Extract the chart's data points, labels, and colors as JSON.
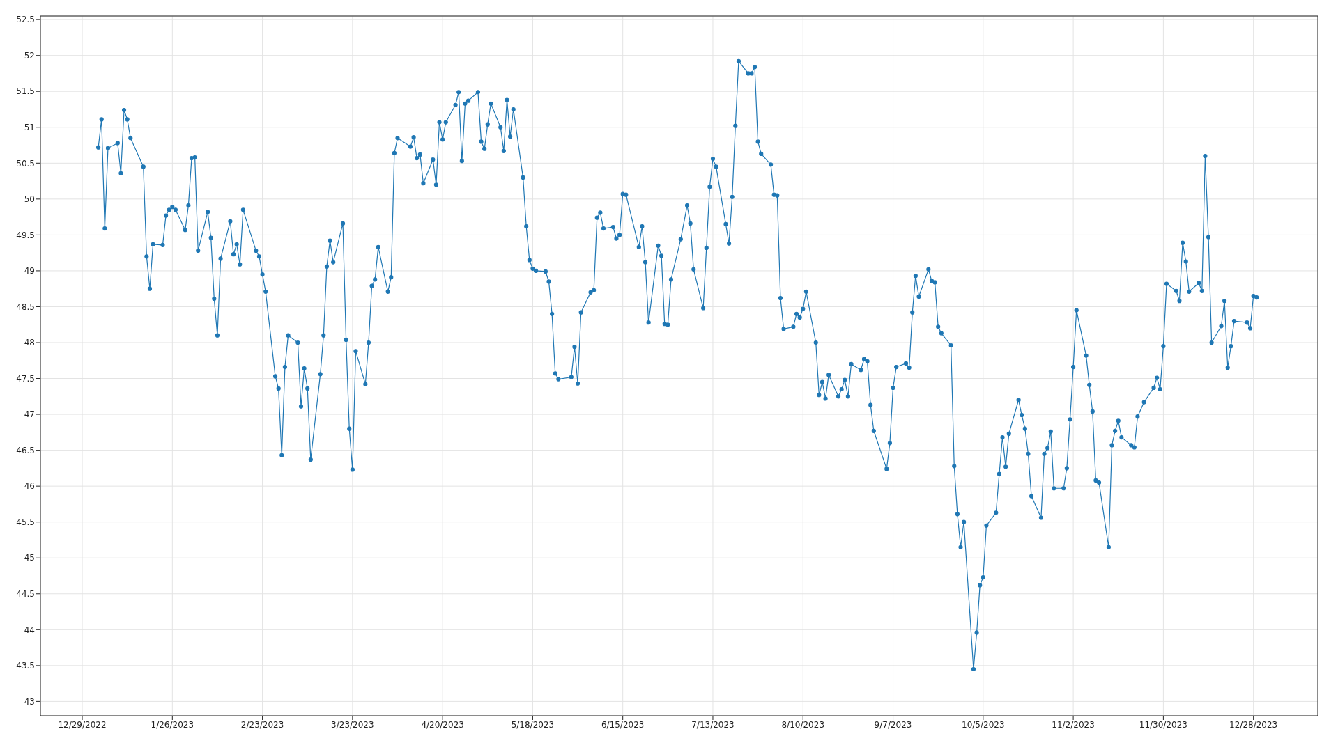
{
  "chart_data": {
    "type": "line",
    "x": [
      "2023-01-03",
      "2023-01-04",
      "2023-01-05",
      "2023-01-06",
      "2023-01-09",
      "2023-01-10",
      "2023-01-11",
      "2023-01-12",
      "2023-01-13",
      "2023-01-17",
      "2023-01-18",
      "2023-01-19",
      "2023-01-20",
      "2023-01-23",
      "2023-01-24",
      "2023-01-25",
      "2023-01-26",
      "2023-01-27",
      "2023-01-30",
      "2023-01-31",
      "2023-02-01",
      "2023-02-02",
      "2023-02-03",
      "2023-02-06",
      "2023-02-07",
      "2023-02-08",
      "2023-02-09",
      "2023-02-10",
      "2023-02-13",
      "2023-02-14",
      "2023-02-15",
      "2023-02-16",
      "2023-02-17",
      "2023-02-21",
      "2023-02-22",
      "2023-02-23",
      "2023-02-24",
      "2023-02-27",
      "2023-02-28",
      "2023-03-01",
      "2023-03-02",
      "2023-03-03",
      "2023-03-06",
      "2023-03-07",
      "2023-03-08",
      "2023-03-09",
      "2023-03-10",
      "2023-03-13",
      "2023-03-14",
      "2023-03-15",
      "2023-03-16",
      "2023-03-17",
      "2023-03-20",
      "2023-03-21",
      "2023-03-22",
      "2023-03-23",
      "2023-03-24",
      "2023-03-27",
      "2023-03-28",
      "2023-03-29",
      "2023-03-30",
      "2023-03-31",
      "2023-04-03",
      "2023-04-04",
      "2023-04-05",
      "2023-04-06",
      "2023-04-10",
      "2023-04-11",
      "2023-04-12",
      "2023-04-13",
      "2023-04-14",
      "2023-04-17",
      "2023-04-18",
      "2023-04-19",
      "2023-04-20",
      "2023-04-21",
      "2023-04-24",
      "2023-04-25",
      "2023-04-26",
      "2023-04-27",
      "2023-04-28",
      "2023-05-01",
      "2023-05-02",
      "2023-05-03",
      "2023-05-04",
      "2023-05-05",
      "2023-05-08",
      "2023-05-09",
      "2023-05-10",
      "2023-05-11",
      "2023-05-12",
      "2023-05-15",
      "2023-05-16",
      "2023-05-17",
      "2023-05-18",
      "2023-05-19",
      "2023-05-22",
      "2023-05-23",
      "2023-05-24",
      "2023-05-25",
      "2023-05-26",
      "2023-05-30",
      "2023-05-31",
      "2023-06-01",
      "2023-06-02",
      "2023-06-05",
      "2023-06-06",
      "2023-06-07",
      "2023-06-08",
      "2023-06-09",
      "2023-06-12",
      "2023-06-13",
      "2023-06-14",
      "2023-06-15",
      "2023-06-16",
      "2023-06-20",
      "2023-06-21",
      "2023-06-22",
      "2023-06-23",
      "2023-06-26",
      "2023-06-27",
      "2023-06-28",
      "2023-06-29",
      "2023-06-30",
      "2023-07-03",
      "2023-07-05",
      "2023-07-06",
      "2023-07-07",
      "2023-07-10",
      "2023-07-11",
      "2023-07-12",
      "2023-07-13",
      "2023-07-14",
      "2023-07-17",
      "2023-07-18",
      "2023-07-19",
      "2023-07-20",
      "2023-07-21",
      "2023-07-24",
      "2023-07-25",
      "2023-07-26",
      "2023-07-27",
      "2023-07-28",
      "2023-07-31",
      "2023-08-01",
      "2023-08-02",
      "2023-08-03",
      "2023-08-04",
      "2023-08-07",
      "2023-08-08",
      "2023-08-09",
      "2023-08-10",
      "2023-08-11",
      "2023-08-14",
      "2023-08-15",
      "2023-08-16",
      "2023-08-17",
      "2023-08-18",
      "2023-08-21",
      "2023-08-22",
      "2023-08-23",
      "2023-08-24",
      "2023-08-25",
      "2023-08-28",
      "2023-08-29",
      "2023-08-30",
      "2023-08-31",
      "2023-09-01",
      "2023-09-05",
      "2023-09-06",
      "2023-09-07",
      "2023-09-08",
      "2023-09-11",
      "2023-09-12",
      "2023-09-13",
      "2023-09-14",
      "2023-09-15",
      "2023-09-18",
      "2023-09-19",
      "2023-09-20",
      "2023-09-21",
      "2023-09-22",
      "2023-09-25",
      "2023-09-26",
      "2023-09-27",
      "2023-09-28",
      "2023-09-29",
      "2023-10-02",
      "2023-10-03",
      "2023-10-04",
      "2023-10-05",
      "2023-10-06",
      "2023-10-09",
      "2023-10-10",
      "2023-10-11",
      "2023-10-12",
      "2023-10-13",
      "2023-10-16",
      "2023-10-17",
      "2023-10-18",
      "2023-10-19",
      "2023-10-20",
      "2023-10-23",
      "2023-10-24",
      "2023-10-25",
      "2023-10-26",
      "2023-10-27",
      "2023-10-30",
      "2023-10-31",
      "2023-11-01",
      "2023-11-02",
      "2023-11-03",
      "2023-11-06",
      "2023-11-07",
      "2023-11-08",
      "2023-11-09",
      "2023-11-10",
      "2023-11-13",
      "2023-11-14",
      "2023-11-15",
      "2023-11-16",
      "2023-11-17",
      "2023-11-20",
      "2023-11-21",
      "2023-11-22",
      "2023-11-24",
      "2023-11-27",
      "2023-11-28",
      "2023-11-29",
      "2023-11-30",
      "2023-12-01",
      "2023-12-04",
      "2023-12-05",
      "2023-12-06",
      "2023-12-07",
      "2023-12-08",
      "2023-12-11",
      "2023-12-12",
      "2023-12-13",
      "2023-12-14",
      "2023-12-15",
      "2023-12-18",
      "2023-12-19",
      "2023-12-20",
      "2023-12-21",
      "2023-12-22",
      "2023-12-26",
      "2023-12-27",
      "2023-12-28",
      "2023-12-29"
    ],
    "series": [
      {
        "color": "#1f77b4",
        "values": [
          50.72,
          51.11,
          49.59,
          50.71,
          50.78,
          50.36,
          51.24,
          51.11,
          50.85,
          50.45,
          49.2,
          48.75,
          49.37,
          49.36,
          49.77,
          49.85,
          49.89,
          49.85,
          49.57,
          49.91,
          50.57,
          50.58,
          49.28,
          49.82,
          49.46,
          48.61,
          48.1,
          49.17,
          49.69,
          49.23,
          49.37,
          49.09,
          49.85,
          49.28,
          49.2,
          48.95,
          48.71,
          47.53,
          47.36,
          46.43,
          47.66,
          48.1,
          48.0,
          47.11,
          47.64,
          47.36,
          46.37,
          47.56,
          48.1,
          49.06,
          49.42,
          49.12,
          49.66,
          48.04,
          46.8,
          46.23,
          47.88,
          47.42,
          48.0,
          48.79,
          48.88,
          49.33,
          48.71,
          48.91,
          50.64,
          50.85,
          50.73,
          50.86,
          50.57,
          50.62,
          50.22,
          50.55,
          50.2,
          51.07,
          50.83,
          51.07,
          51.31,
          51.49,
          50.53,
          51.33,
          51.37,
          51.49,
          50.8,
          50.7,
          51.04,
          51.33,
          51.0,
          50.67,
          51.38,
          50.87,
          51.25,
          50.3,
          49.62,
          49.15,
          49.03,
          49.0,
          48.99,
          48.85,
          48.4,
          47.57,
          47.49,
          47.52,
          47.94,
          47.43,
          48.42,
          48.7,
          48.73,
          49.74,
          49.81,
          49.59,
          49.61,
          49.45,
          49.5,
          50.07,
          50.06,
          49.33,
          49.62,
          49.12,
          48.28,
          49.35,
          49.21,
          48.26,
          48.25,
          48.88,
          49.44,
          49.91,
          49.66,
          49.02,
          48.48,
          49.32,
          50.17,
          50.56,
          50.45,
          49.65,
          49.38,
          50.03,
          51.02,
          51.92,
          51.75,
          51.75,
          51.84,
          50.8,
          50.63,
          50.48,
          50.06,
          50.05,
          48.62,
          48.19,
          48.22,
          48.4,
          48.35,
          48.47,
          48.71,
          48.0,
          47.27,
          47.45,
          47.22,
          47.55,
          47.25,
          47.35,
          47.48,
          47.25,
          47.7,
          47.62,
          47.77,
          47.74,
          47.13,
          46.77,
          46.24,
          46.6,
          47.37,
          47.66,
          47.71,
          47.65,
          48.42,
          48.93,
          48.64,
          49.02,
          48.86,
          48.84,
          48.22,
          48.13,
          47.96,
          46.28,
          45.61,
          45.15,
          45.5,
          43.45,
          43.96,
          44.62,
          44.73,
          45.45,
          45.63,
          46.17,
          46.68,
          46.27,
          46.73,
          47.2,
          46.99,
          46.8,
          46.45,
          45.86,
          45.56,
          46.45,
          46.53,
          46.76,
          45.97,
          45.97,
          46.25,
          46.93,
          47.66,
          48.45,
          47.82,
          47.41,
          47.04,
          46.08,
          46.05,
          45.15,
          46.57,
          46.77,
          46.91,
          46.68,
          46.57,
          46.54,
          46.97,
          47.17,
          47.37,
          47.51,
          47.35,
          47.95,
          48.82,
          48.72,
          48.58,
          49.39,
          49.13,
          48.71,
          48.83,
          48.72,
          50.6,
          49.47,
          48.0,
          48.23,
          48.58,
          47.65,
          47.95,
          48.3,
          48.28,
          48.2,
          48.65,
          48.63
        ]
      }
    ],
    "xlim": [
      "2022-12-16",
      "2024-01-17"
    ],
    "xticks": [
      {
        "value": "2022-12-29",
        "label": "12/29/2022"
      },
      {
        "value": "2023-01-26",
        "label": "1/26/2023"
      },
      {
        "value": "2023-02-23",
        "label": "2/23/2023"
      },
      {
        "value": "2023-03-23",
        "label": "3/23/2023"
      },
      {
        "value": "2023-04-20",
        "label": "4/20/2023"
      },
      {
        "value": "2023-05-18",
        "label": "5/18/2023"
      },
      {
        "value": "2023-06-15",
        "label": "6/15/2023"
      },
      {
        "value": "2023-07-13",
        "label": "7/13/2023"
      },
      {
        "value": "2023-08-10",
        "label": "8/10/2023"
      },
      {
        "value": "2023-09-07",
        "label": "9/7/2023"
      },
      {
        "value": "2023-10-05",
        "label": "10/5/2023"
      },
      {
        "value": "2023-11-02",
        "label": "11/2/2023"
      },
      {
        "value": "2023-11-30",
        "label": "11/30/2023"
      },
      {
        "value": "2023-12-28",
        "label": "12/28/2023"
      }
    ],
    "ylim": [
      42.8,
      52.55
    ],
    "yticks": [
      43,
      43.5,
      44,
      44.5,
      45,
      45.5,
      46,
      46.5,
      47,
      47.5,
      48,
      48.5,
      49,
      49.5,
      50,
      50.5,
      51,
      51.5,
      52,
      52.5
    ],
    "grid": true,
    "marker": "circle",
    "line_style": "solid"
  }
}
